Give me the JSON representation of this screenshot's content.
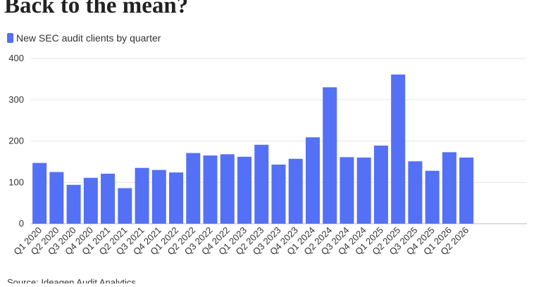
{
  "chart_data": {
    "type": "bar",
    "title": "Back to the mean?",
    "source": "Source: Ideagen Audit Analytics",
    "categories": [
      "Q1 2020",
      "Q2 2020",
      "Q3 2020",
      "Q4 2020",
      "Q1 2021",
      "Q2 2021",
      "Q3 2021",
      "Q4 2021",
      "Q1 2022",
      "Q2 2022",
      "Q3 2022",
      "Q4 2022",
      "Q1 2023",
      "Q2 2023",
      "Q3 2023",
      "Q4 2023",
      "Q1 2024",
      "Q2 2024",
      "Q3 2024",
      "Q4 2024",
      "Q1 2025",
      "Q2 2025",
      "Q3 2025",
      "Q4 2025",
      "Q1 2026",
      "Q2 2026"
    ],
    "series": [
      {
        "name": "New SEC audit clients by quarter",
        "color": "#5470f5",
        "values": [
          147,
          125,
          94,
          111,
          121,
          86,
          135,
          130,
          124,
          171,
          165,
          168,
          162,
          191,
          143,
          157,
          209,
          330,
          161,
          160,
          189,
          361,
          151,
          128,
          173,
          160
        ]
      }
    ],
    "ylim": [
      0,
      400
    ],
    "yticks": [
      0,
      100,
      200,
      300,
      400
    ],
    "grid": true
  }
}
